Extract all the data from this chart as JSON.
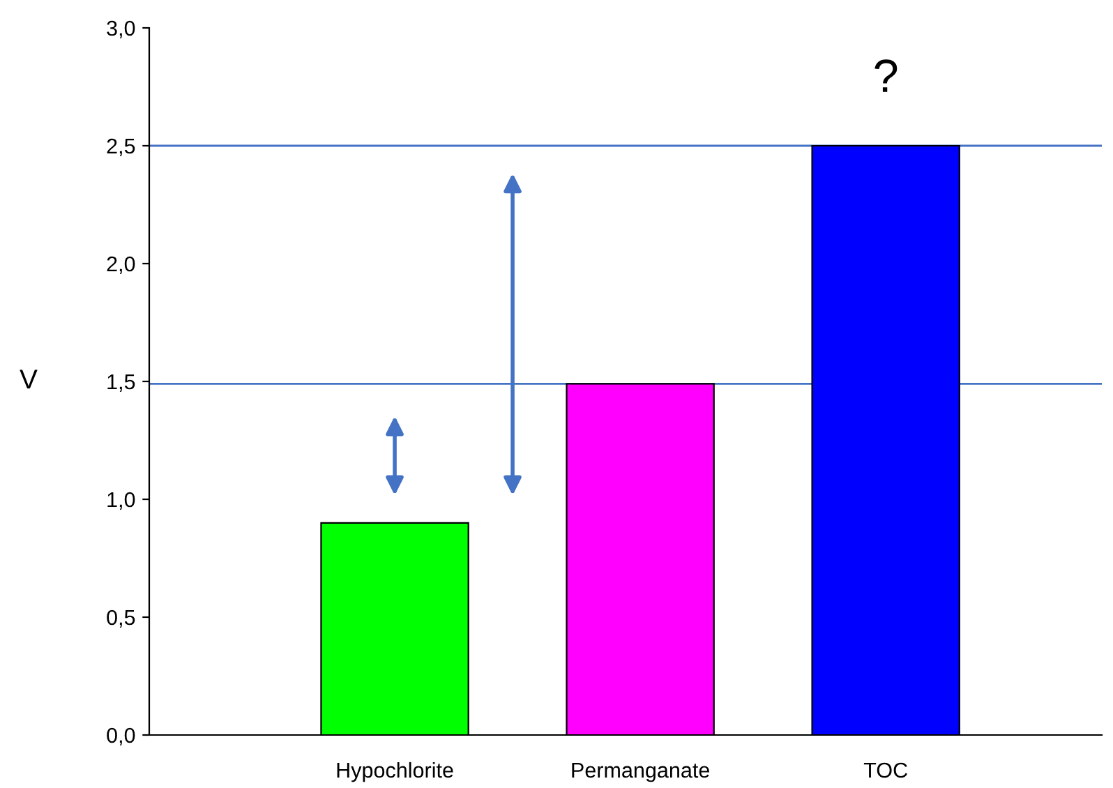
{
  "chart_data": {
    "type": "bar",
    "ylabel": "V",
    "categories": [
      "Hypochlorite",
      "Permanganate",
      "TOC"
    ],
    "values": [
      0.9,
      1.49,
      2.5
    ],
    "colors": [
      "#00ff00",
      "#ff00ff",
      "#0000ff"
    ],
    "ylim": [
      0,
      3
    ],
    "yticks": [
      {
        "value": 0,
        "label": "0,0"
      },
      {
        "value": 0.5,
        "label": "0,5"
      },
      {
        "value": 1,
        "label": "1,0"
      },
      {
        "value": 1.5,
        "label": "1,5"
      },
      {
        "value": 2,
        "label": "2,0"
      },
      {
        "value": 2.5,
        "label": "2,5"
      },
      {
        "value": 3,
        "label": "3,0"
      }
    ],
    "ref_lines": [
      {
        "axis": "y",
        "value": 1.49,
        "color": "#4472c4"
      },
      {
        "axis": "y",
        "value": 2.5,
        "color": "#4472c4"
      }
    ],
    "annotations": [
      "?"
    ],
    "grid": false,
    "legend": false
  }
}
